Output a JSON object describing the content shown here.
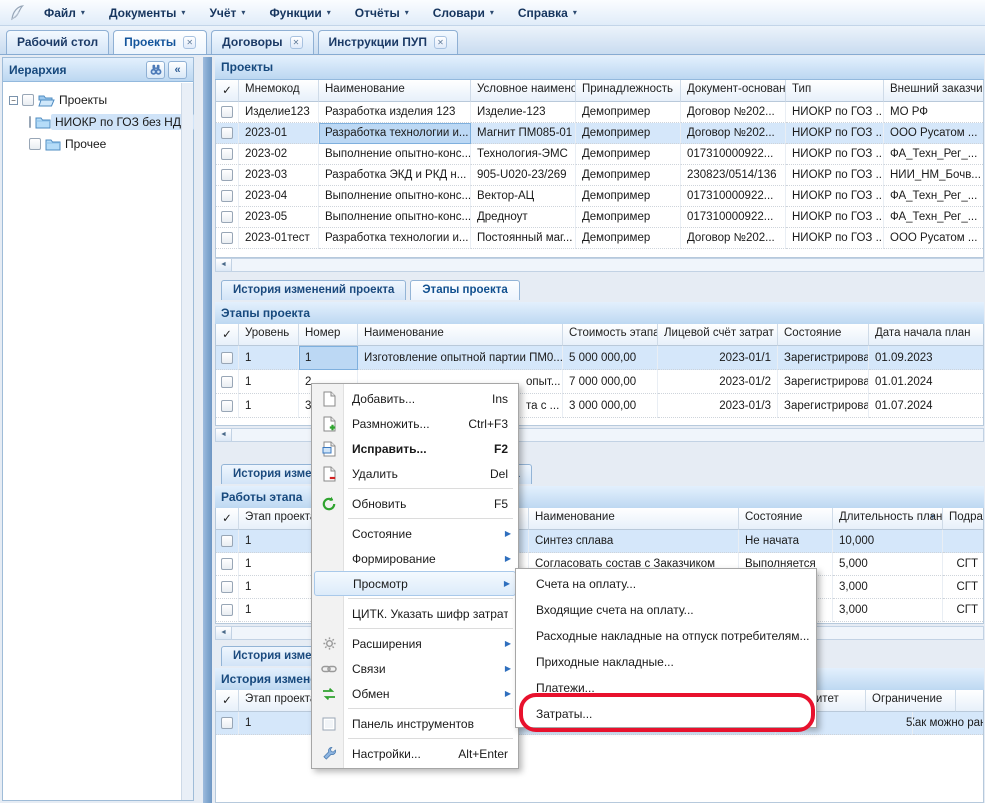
{
  "icons": {
    "close": "✕",
    "caret_down": "▾",
    "submenu_arrow": "▶",
    "sort_desc": "▼",
    "collapse": "«",
    "scroll_left": "◄",
    "checkmark": "✓",
    "expander_collapsed": "−"
  },
  "menubar": {
    "items": [
      "Файл",
      "Документы",
      "Учёт",
      "Функции",
      "Отчёты",
      "Словари",
      "Справка"
    ]
  },
  "workspace_tabs": [
    {
      "label": "Рабочий стол",
      "active": false,
      "closable": false
    },
    {
      "label": "Проекты",
      "active": true,
      "closable": true
    },
    {
      "label": "Договоры",
      "active": false,
      "closable": true
    },
    {
      "label": "Инструкции ПУП",
      "active": false,
      "closable": true
    }
  ],
  "sidebar": {
    "title": "Иерархия",
    "tree": [
      {
        "label": "Проекты",
        "level": 0,
        "expanded": true,
        "selected": false
      },
      {
        "label": "НИОКР по ГОЗ без НДС",
        "level": 1,
        "selected": true
      },
      {
        "label": "Прочее",
        "level": 1,
        "selected": false
      }
    ]
  },
  "projects": {
    "title": "Проекты",
    "columns": [
      "Мнемокод",
      "Наименование",
      "Условное наименование",
      "Принадлежность",
      "Документ-основание",
      "Тип",
      "Внешний заказчик"
    ],
    "rows": [
      [
        "Изделие123",
        "Разработка изделия 123",
        "Изделие-123",
        "Демопример",
        "Договор №202...",
        "НИОКР по ГОЗ ...",
        "МО РФ"
      ],
      [
        "2023-01",
        "Разработка технологии и...",
        "Магнит ПМ085-01",
        "Демопример",
        "Договор №202...",
        "НИОКР по ГОЗ ...",
        "ООО Русатом ..."
      ],
      [
        "2023-02",
        "Выполнение опытно-конс...",
        "Технология-ЭМС",
        "Демопример",
        "017310000922...",
        "НИОКР по ГОЗ ...",
        "ФА_Техн_Рег_..."
      ],
      [
        "2023-03",
        "Разработка ЭКД и РКД н...",
        "905-U020-23/269",
        "Демопример",
        "230823/0514/136",
        "НИОКР по ГОЗ ...",
        "НИИ_НМ_Бочв..."
      ],
      [
        "2023-04",
        "Выполнение опытно-конс...",
        "Вектор-АЦ",
        "Демопример",
        "017310000922...",
        "НИОКР по ГОЗ ...",
        "ФА_Техн_Рег_..."
      ],
      [
        "2023-05",
        "Выполнение опытно-конс...",
        "Дредноут",
        "Демопример",
        "017310000922...",
        "НИОКР по ГОЗ ...",
        "ФА_Техн_Рег_..."
      ],
      [
        "2023-01тест",
        "Разработка технологии и...",
        "Постоянный маг...",
        "Демопример",
        "Договор №202...",
        "НИОКР по ГОЗ ...",
        "ООО Русатом ..."
      ]
    ],
    "selected_row": 1,
    "focused_col": 1
  },
  "stage_section": {
    "tabs": [
      {
        "label": "История изменений проекта",
        "active": false
      },
      {
        "label": "Этапы проекта",
        "active": true
      }
    ],
    "panel_title": "Этапы проекта",
    "columns": [
      "Уровень",
      "Номер",
      "Наименование",
      "Стоимость этапа",
      "Лицевой счёт затрат",
      "Состояние",
      "Дата начала план"
    ],
    "rows": [
      [
        "1",
        "1",
        "Изготовление опытной партии ПМ0...",
        "5 000 000,00",
        "2023-01/1",
        "Зарегистрирован",
        "01.09.2023"
      ],
      [
        "1",
        "2",
        "опыт...",
        "7 000 000,00",
        "2023-01/2",
        "Зарегистрирован",
        "01.01.2024"
      ],
      [
        "1",
        "3",
        "та с ...",
        "3 000 000,00",
        "2023-01/3",
        "Зарегистрирован",
        "01.07.2024"
      ]
    ],
    "selected_row": 0,
    "focused_col": 1
  },
  "works_section": {
    "tabs": [
      {
        "label": "История изменений этапа",
        "active": false
      },
      {
        "label": "Исполнители этапа",
        "active": false
      }
    ],
    "panel_title": "Работы этапа",
    "columns": [
      "Этап проекта",
      "Наименование",
      "Состояние",
      "Длительность план",
      "Подразделение"
    ],
    "sort_column": "Длительность план",
    "rows": [
      [
        "1",
        "Синтез сплава",
        "Не начата",
        "10,000",
        ""
      ],
      [
        "1",
        "Согласовать состав с Заказчиком",
        "Выполняется",
        "5,000",
        "СГТ"
      ],
      [
        "1",
        "",
        "",
        "3,000",
        "СГТ"
      ],
      [
        "1",
        "",
        "",
        "3,000",
        "СГТ"
      ]
    ],
    "selected_row": 0
  },
  "history_section": {
    "tabs": [
      {
        "label": "История изменений работы",
        "active": false
      }
    ],
    "panel_title": "История изменений работы",
    "columns": [
      "Этап проекта",
      "Наименование",
      "Приоритет",
      "Ограничение",
      ""
    ],
    "rows": [
      [
        "1",
        "Синтез сплава",
        "500",
        "Как можно ран...",
        ""
      ]
    ],
    "selected_row": 0
  },
  "context_menu": {
    "items": [
      {
        "label": "Добавить...",
        "shortcut": "Ins",
        "icon": "page-new-icon"
      },
      {
        "label": "Размножить...",
        "shortcut": "Ctrl+F3",
        "icon": "page-plus-icon"
      },
      {
        "label": "Исправить...",
        "shortcut": "F2",
        "icon": "page-edit-icon",
        "bold": true
      },
      {
        "label": "Удалить",
        "shortcut": "Del",
        "icon": "page-minus-icon",
        "sep_after": true
      },
      {
        "label": "Обновить",
        "shortcut": "F5",
        "icon": "refresh-icon",
        "sep_after": true
      },
      {
        "label": "Состояние",
        "submenu": true
      },
      {
        "label": "Формирование",
        "submenu": true
      },
      {
        "label": "Просмотр",
        "submenu": true,
        "highlight": true,
        "sep_after": true
      },
      {
        "label": "ЦИТК. Указать шифр затрат...",
        "sep_after": true
      },
      {
        "label": "Расширения",
        "submenu": true,
        "icon": "gear-icon"
      },
      {
        "label": "Связи",
        "submenu": true,
        "icon": "chain-icon"
      },
      {
        "label": "Обмен",
        "submenu": true,
        "icon": "exchange-icon",
        "sep_after": true
      },
      {
        "label": "Панель инструментов",
        "icon": "checkbox-icon",
        "sep_after": true
      },
      {
        "label": "Настройки...",
        "shortcut": "Alt+Enter",
        "icon": "wrench-icon"
      }
    ]
  },
  "view_submenu": {
    "items": [
      "Счета на оплату...",
      "Входящие счета на оплату...",
      "Расходные накладные на отпуск потребителям...",
      "Приходные накладные...",
      "Платежи...",
      "Затраты..."
    ]
  },
  "annotation": {
    "shape": "oval",
    "color": "#e8112d",
    "highlighted_item": "Затраты..."
  }
}
